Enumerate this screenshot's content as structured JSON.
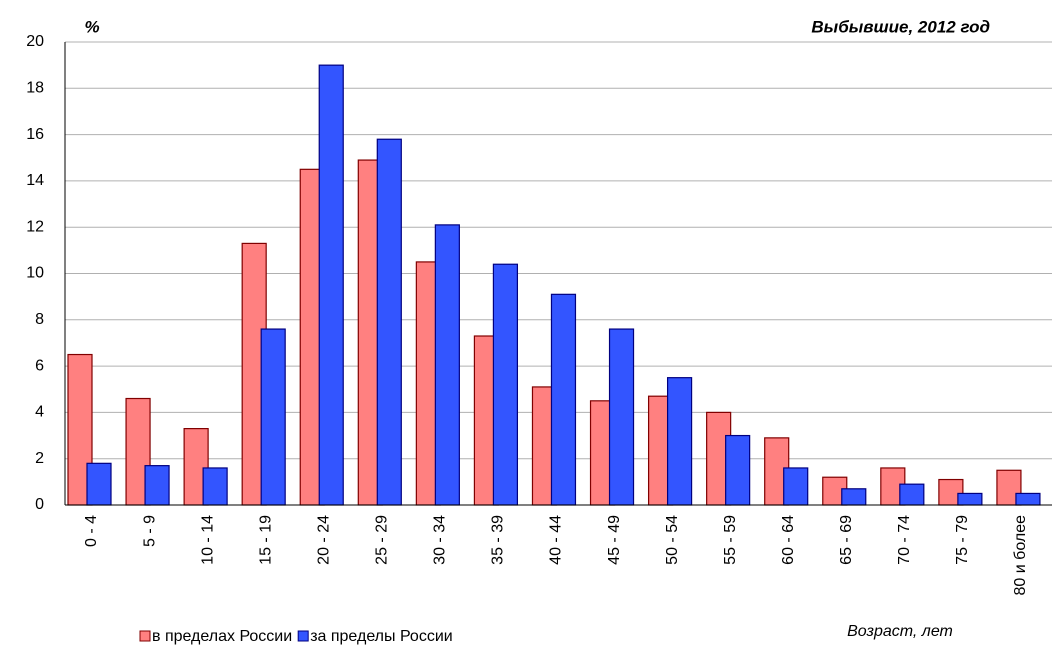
{
  "chart_data": {
    "type": "bar",
    "title": "Выбывшие, 2012 год",
    "y_label": "%",
    "x_label": "Возраст, лет",
    "categories": [
      "0 - 4",
      "5 - 9",
      "10 - 14",
      "15 - 19",
      "20 - 24",
      "25 - 29",
      "30 - 34",
      "35 - 39",
      "40 - 44",
      "45 - 49",
      "50 - 54",
      "55 - 59",
      "60 - 64",
      "65 - 69",
      "70 - 74",
      "75 - 79",
      "80 и более"
    ],
    "series": [
      {
        "name": "в пределах России",
        "color": "#ff8080",
        "stroke": "#800000",
        "values": [
          6.5,
          4.6,
          3.3,
          11.3,
          14.5,
          14.9,
          10.5,
          7.3,
          5.1,
          4.5,
          4.7,
          4.0,
          2.9,
          1.2,
          1.6,
          1.1,
          1.5
        ]
      },
      {
        "name": "за пределы России",
        "color": "#3355ff",
        "stroke": "#000080",
        "values": [
          1.8,
          1.7,
          1.6,
          7.6,
          19.0,
          15.8,
          12.1,
          10.4,
          9.1,
          7.6,
          5.5,
          3.0,
          1.6,
          0.7,
          0.9,
          0.5,
          0.5
        ]
      }
    ],
    "ylim": [
      0,
      20
    ],
    "yticks": [
      0,
      2,
      4,
      6,
      8,
      10,
      12,
      14,
      16,
      18,
      20
    ],
    "grid": true
  }
}
